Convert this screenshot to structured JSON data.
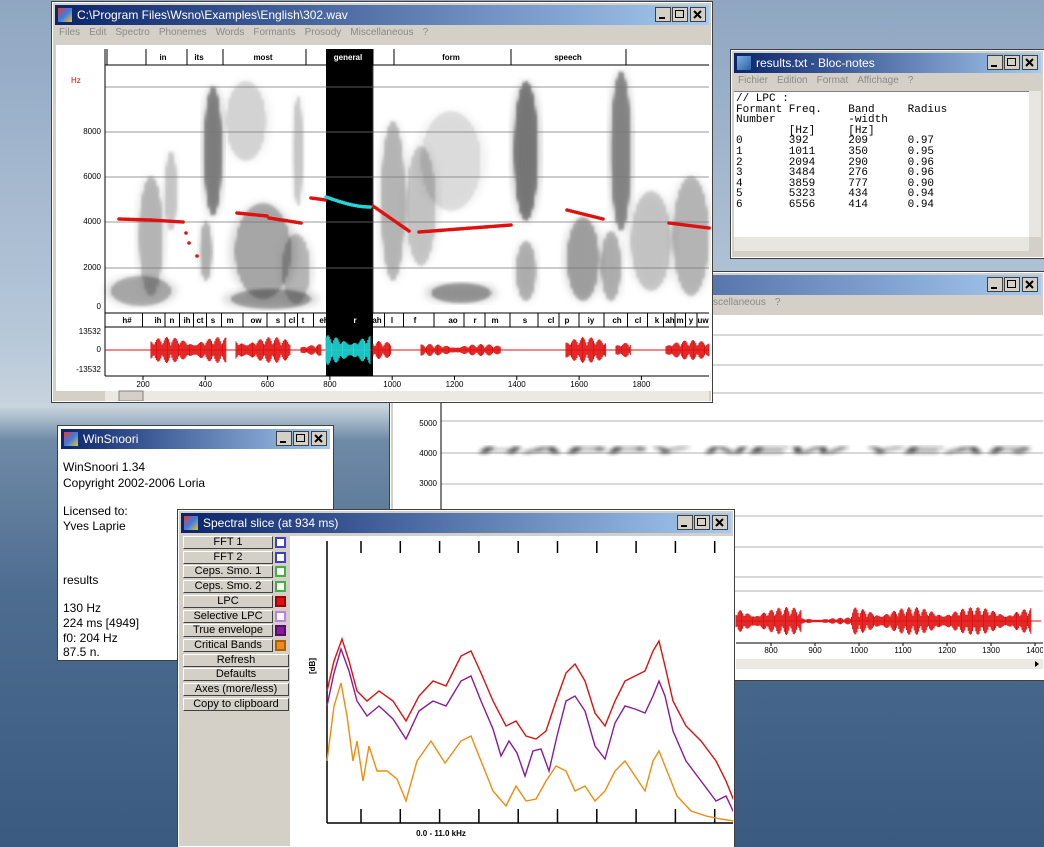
{
  "main_window": {
    "title": "C:\\Program Files\\Wsno\\Examples\\English\\302.wav",
    "menu": [
      "Files",
      "Edit",
      "Spectro",
      "Phonemes",
      "Words",
      "Formants",
      "Prosody",
      "Miscellaneous",
      "?"
    ],
    "words": [
      "in",
      "its",
      "most",
      "general",
      "form",
      "speech"
    ],
    "freq_unit": "Hz",
    "freq_labels": [
      "8000",
      "6000",
      "4000",
      "2000",
      "0"
    ],
    "phonemes": [
      "h#",
      "ih",
      "n",
      "ih",
      "ct",
      "s",
      "m",
      "ow",
      "s",
      "cl",
      "t",
      "eh",
      "r",
      "ah",
      "l",
      "f",
      "ao",
      "r",
      "m",
      "s",
      "cl",
      "p",
      "iy",
      "ch",
      "cl",
      "k",
      "ah",
      "m",
      "y",
      "uw"
    ],
    "amp_labels": [
      "13532",
      "0",
      "-13532"
    ],
    "time_labels": [
      "200",
      "400",
      "600",
      "800",
      "1000",
      "1200",
      "1400",
      "1600",
      "1800"
    ]
  },
  "notepad": {
    "title": "results.txt - Bloc-notes",
    "menu": [
      "Fichier",
      "Edition",
      "Format",
      "Affichage",
      "?"
    ],
    "lines": [
      "// LPC :",
      "Formant Freq.    Band     Radius",
      "Number           -width",
      "        [Hz]     [Hz]",
      "0       392      209      0.97",
      "1       1011     350      0.95",
      "2       2094     290      0.96",
      "3       3484     276      0.96",
      "4       3859     777      0.90",
      "5       5323     434      0.94",
      "6       6556     414      0.94"
    ]
  },
  "back_window": {
    "menu": [
      "scellaneous",
      "?"
    ],
    "freq_labels": [
      "5000",
      "4000",
      "3000"
    ],
    "time_labels": [
      "800",
      "900",
      "1000",
      "1100",
      "1200",
      "1300",
      "1400"
    ],
    "spectrogram_text": "HAPPY NEW YEAR"
  },
  "about_window": {
    "title": "WinSnoori",
    "lines": [
      "WinSnoori 1.34",
      "Copyright 2002-2006 Loria",
      "Licensed to:",
      "Yves Laprie"
    ],
    "status": [
      "results",
      "130 Hz",
      "224 ms [4949]",
      "f0: 204 Hz",
      "87.5 n."
    ]
  },
  "slice_window": {
    "title": "Spectral slice (at  934 ms)",
    "buttons": [
      "FFT 1",
      "FFT 2",
      "Ceps. Smo. 1",
      "Ceps. Smo. 2",
      "LPC",
      "Selective LPC",
      "True envelope",
      "Critical Bands",
      "Refresh",
      "Defaults",
      "Axes (more/less)",
      "Copy to clipboard"
    ],
    "y_label": "[dB]",
    "x_label": "0.0 - 11.0 kHz"
  }
}
